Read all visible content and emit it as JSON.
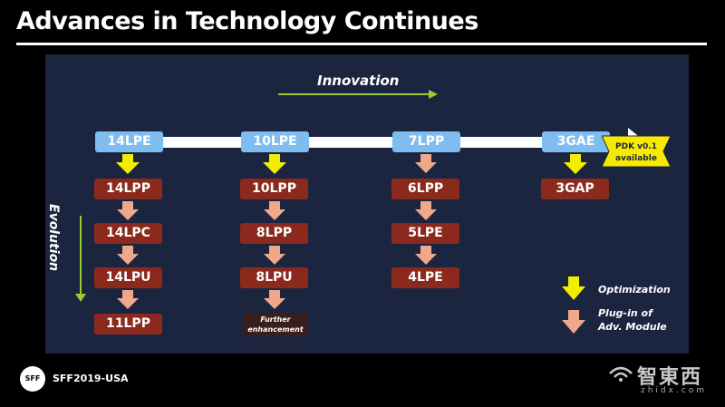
{
  "title": "Advances in Technology Continues",
  "innovation_label": "Innovation",
  "evolution_label": "Evolution",
  "columns": [
    {
      "head": "14LPE",
      "nodes": [
        "14LPP",
        "14LPC",
        "14LPU",
        "11LPP"
      ]
    },
    {
      "head": "10LPE",
      "nodes": [
        "10LPP",
        "8LPP",
        "8LPU"
      ],
      "note_lines": [
        "Further",
        "enhancement"
      ]
    },
    {
      "head": "7LPP",
      "nodes": [
        "6LPP",
        "5LPE",
        "4LPE"
      ]
    },
    {
      "head": "3GAE",
      "nodes": [
        "3GAP"
      ]
    }
  ],
  "badge_lines": [
    "PDK v0.1",
    "available"
  ],
  "legend": {
    "optimization": "Optimization",
    "plugin_lines": [
      "Plug-in of",
      "Adv. Module"
    ]
  },
  "footer": {
    "logo": "SFF",
    "event": "SFF2019-USA"
  },
  "watermark": {
    "zh": "智東西",
    "en": "zhidx.com"
  },
  "colors": {
    "background": "#000000",
    "panel": "#1b2540",
    "blue_node": "#7fbdf0",
    "red_node": "#8b2a1c",
    "optimization_arrow": "#f3ee00",
    "plugin_arrow": "#f0a88a",
    "evolution_arrow": "#9acd32",
    "badge": "#f7ea00"
  }
}
